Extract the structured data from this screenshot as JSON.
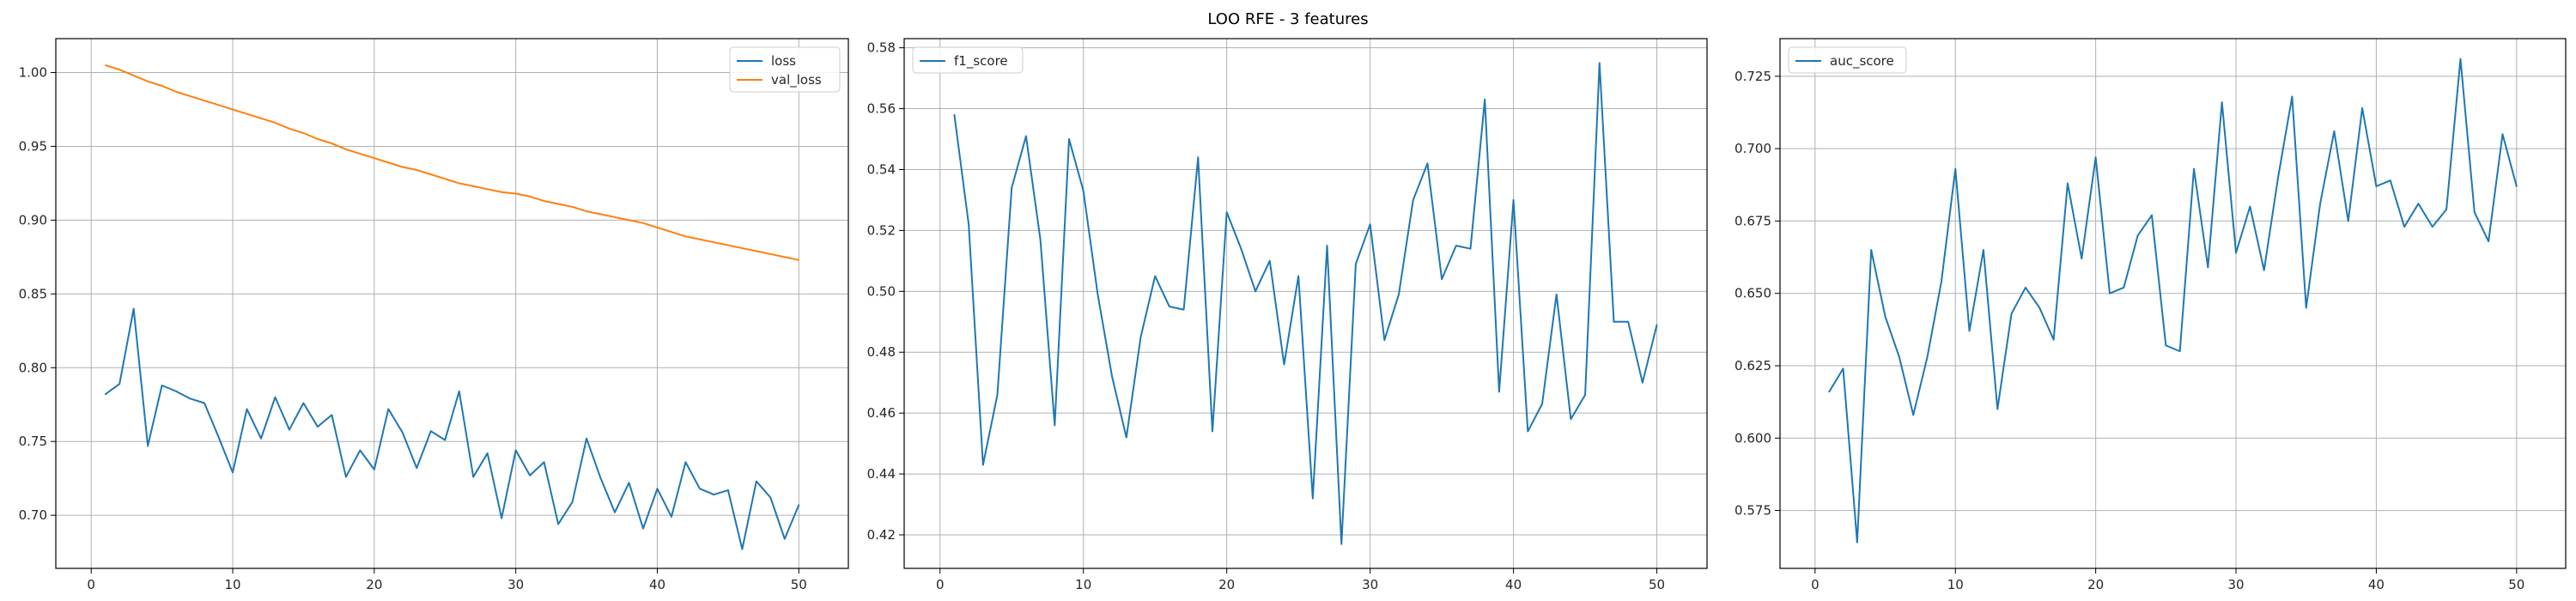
{
  "figure_title": "LOO RFE - 3 features",
  "colors": {
    "blue": "#1f77b4",
    "orange": "#ff7f0e",
    "grid": "#b0b0b0",
    "axis": "#000000"
  },
  "chart_data": [
    {
      "type": "line",
      "title": "",
      "xlabel": "",
      "ylabel": "",
      "xlim": [
        -2.5,
        53.5
      ],
      "ylim": [
        0.664,
        1.023
      ],
      "xticks": [
        0,
        10,
        20,
        30,
        40,
        50
      ],
      "xtick_labels": [
        "0",
        "10",
        "20",
        "30",
        "40",
        "50"
      ],
      "yticks": [
        0.7,
        0.75,
        0.8,
        0.85,
        0.9,
        0.95,
        1.0
      ],
      "ytick_labels": [
        "0.70",
        "0.75",
        "0.80",
        "0.85",
        "0.90",
        "0.95",
        "1.00"
      ],
      "grid": true,
      "legend_position": "top-right",
      "x": [
        1,
        2,
        3,
        4,
        5,
        6,
        7,
        8,
        9,
        10,
        11,
        12,
        13,
        14,
        15,
        16,
        17,
        18,
        19,
        20,
        21,
        22,
        23,
        24,
        25,
        26,
        27,
        28,
        29,
        30,
        31,
        32,
        33,
        34,
        35,
        36,
        37,
        38,
        39,
        40,
        41,
        42,
        43,
        44,
        45,
        46,
        47,
        48,
        49,
        50
      ],
      "series": [
        {
          "name": "loss",
          "color": "#1f77b4",
          "values": [
            0.782,
            0.789,
            0.84,
            0.747,
            0.788,
            0.784,
            0.779,
            0.776,
            0.753,
            0.729,
            0.772,
            0.752,
            0.78,
            0.758,
            0.776,
            0.76,
            0.768,
            0.726,
            0.744,
            0.731,
            0.772,
            0.756,
            0.732,
            0.757,
            0.751,
            0.784,
            0.726,
            0.742,
            0.698,
            0.744,
            0.727,
            0.736,
            0.694,
            0.709,
            0.752,
            0.725,
            0.702,
            0.722,
            0.691,
            0.718,
            0.699,
            0.736,
            0.718,
            0.714,
            0.717,
            0.677,
            0.723,
            0.712,
            0.684,
            0.707
          ]
        },
        {
          "name": "val_loss",
          "color": "#ff7f0e",
          "values": [
            1.005,
            1.002,
            0.998,
            0.994,
            0.991,
            0.987,
            0.984,
            0.981,
            0.978,
            0.975,
            0.972,
            0.969,
            0.966,
            0.962,
            0.959,
            0.955,
            0.952,
            0.948,
            0.945,
            0.942,
            0.939,
            0.936,
            0.934,
            0.931,
            0.928,
            0.925,
            0.923,
            0.921,
            0.919,
            0.918,
            0.916,
            0.913,
            0.911,
            0.909,
            0.906,
            0.904,
            0.902,
            0.9,
            0.898,
            0.895,
            0.892,
            0.889,
            0.887,
            0.885,
            0.883,
            0.881,
            0.879,
            0.877,
            0.875,
            0.873
          ]
        }
      ]
    },
    {
      "type": "line",
      "title": "",
      "xlabel": "",
      "ylabel": "",
      "xlim": [
        -2.5,
        53.5
      ],
      "ylim": [
        0.409,
        0.583
      ],
      "xticks": [
        0,
        10,
        20,
        30,
        40,
        50
      ],
      "xtick_labels": [
        "0",
        "10",
        "20",
        "30",
        "40",
        "50"
      ],
      "yticks": [
        0.42,
        0.44,
        0.46,
        0.48,
        0.5,
        0.52,
        0.54,
        0.56,
        0.58
      ],
      "ytick_labels": [
        "0.42",
        "0.44",
        "0.46",
        "0.48",
        "0.50",
        "0.52",
        "0.54",
        "0.56",
        "0.58"
      ],
      "grid": true,
      "legend_position": "top-left",
      "x": [
        1,
        2,
        3,
        4,
        5,
        6,
        7,
        8,
        9,
        10,
        11,
        12,
        13,
        14,
        15,
        16,
        17,
        18,
        19,
        20,
        21,
        22,
        23,
        24,
        25,
        26,
        27,
        28,
        29,
        30,
        31,
        32,
        33,
        34,
        35,
        36,
        37,
        38,
        39,
        40,
        41,
        42,
        43,
        44,
        45,
        46,
        47,
        48,
        49,
        50
      ],
      "series": [
        {
          "name": "f1_score",
          "color": "#1f77b4",
          "values": [
            0.558,
            0.522,
            0.443,
            0.466,
            0.534,
            0.551,
            0.517,
            0.456,
            0.55,
            0.533,
            0.499,
            0.472,
            0.452,
            0.485,
            0.505,
            0.495,
            0.494,
            0.544,
            0.454,
            0.526,
            0.514,
            0.5,
            0.51,
            0.476,
            0.505,
            0.432,
            0.515,
            0.417,
            0.509,
            0.522,
            0.484,
            0.499,
            0.53,
            0.542,
            0.504,
            0.515,
            0.514,
            0.563,
            0.467,
            0.53,
            0.454,
            0.463,
            0.499,
            0.458,
            0.466,
            0.575,
            0.49,
            0.49,
            0.47,
            0.489
          ]
        }
      ]
    },
    {
      "type": "line",
      "title": "",
      "xlabel": "",
      "ylabel": "",
      "xlim": [
        -2.5,
        53.5
      ],
      "ylim": [
        0.555,
        0.738
      ],
      "xticks": [
        0,
        10,
        20,
        30,
        40,
        50
      ],
      "xtick_labels": [
        "0",
        "10",
        "20",
        "30",
        "40",
        "50"
      ],
      "yticks": [
        0.575,
        0.6,
        0.625,
        0.65,
        0.675,
        0.7,
        0.725
      ],
      "ytick_labels": [
        "0.575",
        "0.600",
        "0.625",
        "0.650",
        "0.675",
        "0.700",
        "0.725"
      ],
      "grid": true,
      "legend_position": "top-left",
      "x": [
        1,
        2,
        3,
        4,
        5,
        6,
        7,
        8,
        9,
        10,
        11,
        12,
        13,
        14,
        15,
        16,
        17,
        18,
        19,
        20,
        21,
        22,
        23,
        24,
        25,
        26,
        27,
        28,
        29,
        30,
        31,
        32,
        33,
        34,
        35,
        36,
        37,
        38,
        39,
        40,
        41,
        42,
        43,
        44,
        45,
        46,
        47,
        48,
        49,
        50
      ],
      "series": [
        {
          "name": "auc_score",
          "color": "#1f77b4",
          "values": [
            0.616,
            0.624,
            0.564,
            0.665,
            0.642,
            0.628,
            0.608,
            0.628,
            0.654,
            0.693,
            0.637,
            0.665,
            0.61,
            0.643,
            0.652,
            0.645,
            0.634,
            0.688,
            0.662,
            0.697,
            0.65,
            0.652,
            0.67,
            0.677,
            0.632,
            0.63,
            0.693,
            0.659,
            0.716,
            0.664,
            0.68,
            0.658,
            0.69,
            0.718,
            0.645,
            0.681,
            0.706,
            0.675,
            0.714,
            0.687,
            0.689,
            0.673,
            0.681,
            0.673,
            0.679,
            0.731,
            0.678,
            0.668,
            0.705,
            0.687
          ]
        }
      ]
    }
  ]
}
